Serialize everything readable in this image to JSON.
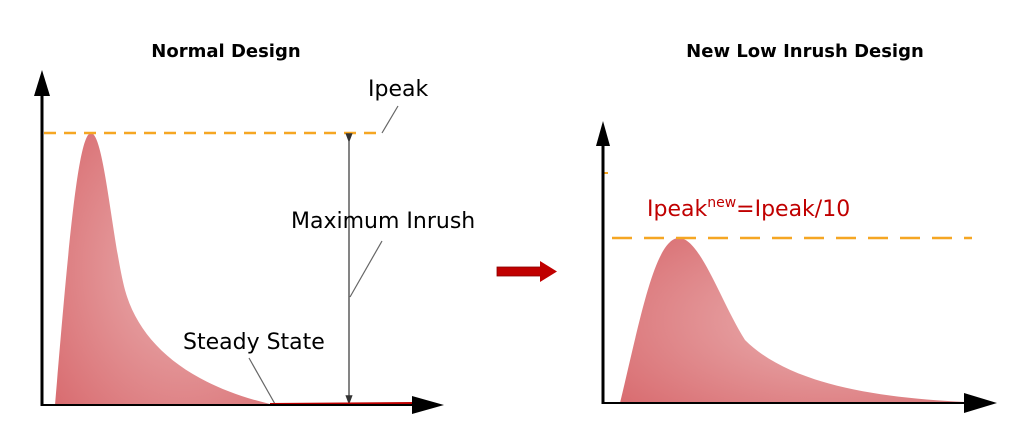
{
  "left_panel": {
    "title": "Normal Design",
    "peak_label": "Ipeak",
    "inrush_label": "Maximum Inrush",
    "steady_label": "Steady State"
  },
  "right_panel": {
    "title": "New Low Inrush Design",
    "formula_base": "Ipeak",
    "formula_sup": "new",
    "formula_rest": "=Ipeak/10"
  },
  "colors": {
    "curve_fill": "#e07a7e",
    "dashed_line": "#f5a623",
    "formula_text": "#c00000",
    "transition_arrow": "#c00000"
  }
}
